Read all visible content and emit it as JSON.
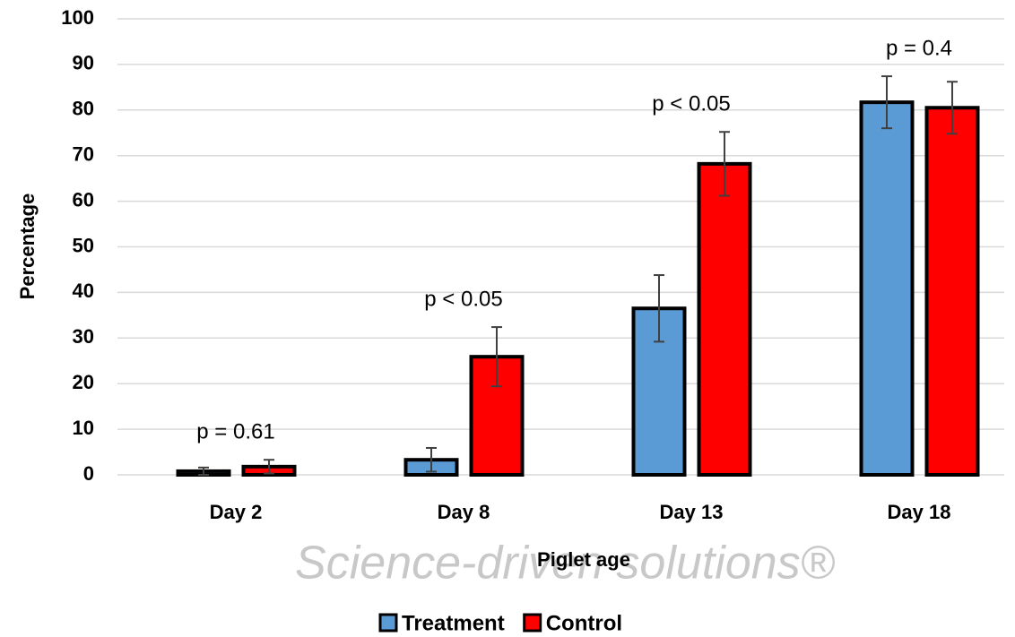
{
  "chart_data": {
    "type": "bar",
    "categories": [
      "Day 2",
      "Day 8",
      "Day 13",
      "Day 18"
    ],
    "series": [
      {
        "name": "Treatment",
        "color": "#5b9bd5",
        "values": [
          0.8,
          3.3,
          36.5,
          81.7
        ],
        "errors": [
          0.8,
          2.6,
          7.3,
          5.7
        ]
      },
      {
        "name": "Control",
        "color": "#ff0000",
        "values": [
          1.8,
          25.9,
          68.2,
          80.5
        ],
        "errors": [
          1.5,
          6.5,
          7.0,
          5.7
        ]
      }
    ],
    "annotations": [
      "p = 0.61",
      "p < 0.05",
      "p < 0.05",
      "p = 0.4"
    ],
    "ylim": [
      0,
      100
    ],
    "yticks": [
      0,
      10,
      20,
      30,
      40,
      50,
      60,
      70,
      80,
      90,
      100
    ],
    "grid": true,
    "ylabel": "Percentage",
    "xlabel": "Piglet age",
    "watermark": "Science-driven solutions®",
    "legend": "bottom"
  }
}
